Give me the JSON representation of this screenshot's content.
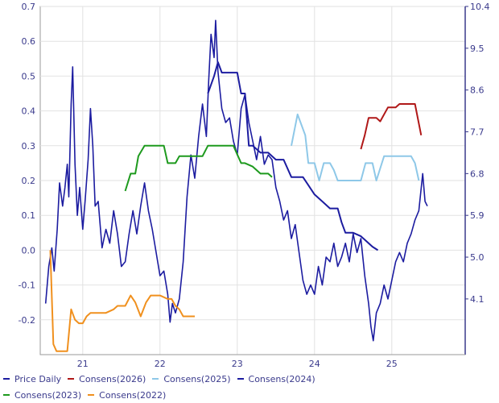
{
  "chart_data": {
    "type": "line",
    "x_ticks": [
      21,
      22,
      23,
      24,
      25
    ],
    "y_left": {
      "ticks": [
        0.7,
        0.6,
        0.5,
        0.4,
        0.3,
        0.2,
        0.1,
        0.0,
        -0.1,
        -0.2
      ],
      "labels": [
        "0.7",
        "0.6",
        "0.5",
        "0.4",
        "0.3",
        "0.2",
        "0.1",
        "0.0",
        "-0.1",
        "-0.2"
      ],
      "ylim": [
        -0.3,
        0.7
      ]
    },
    "y_right": {
      "ticks": [
        10.4,
        9.5,
        8.6,
        7.7,
        6.8,
        5.9,
        5.0,
        4.1
      ],
      "labels": [
        "10.4",
        "9.5",
        "8.6",
        "7.7",
        "6.8",
        "5.9",
        "5.0",
        "4.1"
      ],
      "ylim": [
        2.9,
        10.4
      ]
    },
    "xlim": [
      20.45,
      25.95
    ],
    "grid": true,
    "legend_position": "bottom",
    "series": [
      {
        "name": "Price Daily",
        "axis": "right",
        "color": "#1c1ca0",
        "points": [
          [
            20.52,
            4.0
          ],
          [
            20.56,
            4.8
          ],
          [
            20.6,
            5.2
          ],
          [
            20.63,
            4.7
          ],
          [
            20.67,
            5.6
          ],
          [
            20.7,
            6.6
          ],
          [
            20.74,
            6.1
          ],
          [
            20.77,
            6.5
          ],
          [
            20.8,
            7.0
          ],
          [
            20.82,
            6.3
          ],
          [
            20.85,
            8.3
          ],
          [
            20.87,
            9.1
          ],
          [
            20.9,
            7.0
          ],
          [
            20.93,
            5.9
          ],
          [
            20.96,
            6.5
          ],
          [
            21.0,
            5.6
          ],
          [
            21.03,
            6.2
          ],
          [
            21.07,
            7.1
          ],
          [
            21.1,
            8.2
          ],
          [
            21.13,
            7.4
          ],
          [
            21.16,
            6.1
          ],
          [
            21.2,
            6.2
          ],
          [
            21.25,
            5.2
          ],
          [
            21.3,
            5.6
          ],
          [
            21.35,
            5.3
          ],
          [
            21.4,
            6.0
          ],
          [
            21.45,
            5.5
          ],
          [
            21.5,
            4.8
          ],
          [
            21.55,
            4.9
          ],
          [
            21.6,
            5.5
          ],
          [
            21.65,
            6.0
          ],
          [
            21.7,
            5.5
          ],
          [
            21.75,
            6.1
          ],
          [
            21.8,
            6.6
          ],
          [
            21.85,
            6.0
          ],
          [
            21.9,
            5.6
          ],
          [
            21.95,
            5.1
          ],
          [
            22.0,
            4.6
          ],
          [
            22.05,
            4.7
          ],
          [
            22.1,
            4.2
          ],
          [
            22.13,
            3.6
          ],
          [
            22.16,
            4.0
          ],
          [
            22.2,
            3.8
          ],
          [
            22.25,
            4.1
          ],
          [
            22.3,
            4.9
          ],
          [
            22.35,
            6.3
          ],
          [
            22.4,
            7.2
          ],
          [
            22.45,
            6.7
          ],
          [
            22.5,
            7.6
          ],
          [
            22.55,
            8.3
          ],
          [
            22.6,
            7.6
          ],
          [
            22.63,
            8.8
          ],
          [
            22.66,
            9.8
          ],
          [
            22.7,
            9.3
          ],
          [
            22.72,
            10.1
          ],
          [
            22.75,
            9.0
          ],
          [
            22.8,
            8.2
          ],
          [
            22.85,
            7.9
          ],
          [
            22.9,
            8.0
          ],
          [
            22.95,
            7.5
          ],
          [
            23.0,
            7.2
          ],
          [
            23.05,
            8.2
          ],
          [
            23.1,
            8.5
          ],
          [
            23.15,
            7.9
          ],
          [
            23.2,
            7.5
          ],
          [
            23.25,
            7.1
          ],
          [
            23.3,
            7.6
          ],
          [
            23.35,
            7.0
          ],
          [
            23.4,
            7.2
          ],
          [
            23.45,
            7.1
          ],
          [
            23.5,
            6.5
          ],
          [
            23.55,
            6.2
          ],
          [
            23.6,
            5.8
          ],
          [
            23.65,
            6.0
          ],
          [
            23.7,
            5.4
          ],
          [
            23.75,
            5.7
          ],
          [
            23.8,
            5.1
          ],
          [
            23.85,
            4.5
          ],
          [
            23.9,
            4.2
          ],
          [
            23.95,
            4.4
          ],
          [
            24.0,
            4.2
          ],
          [
            24.05,
            4.8
          ],
          [
            24.1,
            4.4
          ],
          [
            24.15,
            5.0
          ],
          [
            24.2,
            4.9
          ],
          [
            24.25,
            5.3
          ],
          [
            24.3,
            4.8
          ],
          [
            24.35,
            5.0
          ],
          [
            24.4,
            5.3
          ],
          [
            24.45,
            4.9
          ],
          [
            24.5,
            5.5
          ],
          [
            24.55,
            5.1
          ],
          [
            24.6,
            5.4
          ],
          [
            24.65,
            4.6
          ],
          [
            24.7,
            4.0
          ],
          [
            24.73,
            3.5
          ],
          [
            24.76,
            3.2
          ],
          [
            24.8,
            3.8
          ],
          [
            24.85,
            4.0
          ],
          [
            24.9,
            4.4
          ],
          [
            24.95,
            4.1
          ],
          [
            25.0,
            4.5
          ],
          [
            25.05,
            4.9
          ],
          [
            25.1,
            5.1
          ],
          [
            25.15,
            4.9
          ],
          [
            25.2,
            5.3
          ],
          [
            25.25,
            5.5
          ],
          [
            25.3,
            5.8
          ],
          [
            25.35,
            6.0
          ],
          [
            25.4,
            6.8
          ],
          [
            25.43,
            6.2
          ],
          [
            25.46,
            6.1
          ]
        ]
      },
      {
        "name": "Consens(2026)",
        "axis": "left",
        "color": "#b01818",
        "points": [
          [
            24.6,
            0.29
          ],
          [
            24.65,
            0.33
          ],
          [
            24.7,
            0.38
          ],
          [
            24.8,
            0.38
          ],
          [
            24.85,
            0.37
          ],
          [
            24.95,
            0.41
          ],
          [
            25.05,
            0.41
          ],
          [
            25.1,
            0.42
          ],
          [
            25.3,
            0.42
          ],
          [
            25.38,
            0.33
          ]
        ]
      },
      {
        "name": "Consens(2025)",
        "axis": "left",
        "color": "#8ec8e8",
        "points": [
          [
            23.7,
            0.3
          ],
          [
            23.78,
            0.39
          ],
          [
            23.88,
            0.33
          ],
          [
            23.92,
            0.25
          ],
          [
            24.0,
            0.25
          ],
          [
            24.06,
            0.2
          ],
          [
            24.12,
            0.25
          ],
          [
            24.2,
            0.25
          ],
          [
            24.25,
            0.23
          ],
          [
            24.3,
            0.2
          ],
          [
            24.5,
            0.2
          ],
          [
            24.6,
            0.2
          ],
          [
            24.66,
            0.25
          ],
          [
            24.75,
            0.25
          ],
          [
            24.8,
            0.2
          ],
          [
            24.9,
            0.27
          ],
          [
            25.0,
            0.27
          ],
          [
            25.25,
            0.27
          ],
          [
            25.3,
            0.25
          ],
          [
            25.35,
            0.2
          ]
        ]
      },
      {
        "name": "Consens(2024)",
        "axis": "left",
        "color": "#1c1ca0",
        "points": [
          [
            22.62,
            0.45
          ],
          [
            22.7,
            0.5
          ],
          [
            22.75,
            0.54
          ],
          [
            22.8,
            0.51
          ],
          [
            22.85,
            0.51
          ],
          [
            23.0,
            0.51
          ],
          [
            23.05,
            0.45
          ],
          [
            23.1,
            0.45
          ],
          [
            23.15,
            0.3
          ],
          [
            23.2,
            0.3
          ],
          [
            23.3,
            0.28
          ],
          [
            23.4,
            0.28
          ],
          [
            23.5,
            0.26
          ],
          [
            23.6,
            0.26
          ],
          [
            23.7,
            0.21
          ],
          [
            23.85,
            0.21
          ],
          [
            24.0,
            0.16
          ],
          [
            24.1,
            0.14
          ],
          [
            24.2,
            0.12
          ],
          [
            24.3,
            0.12
          ],
          [
            24.35,
            0.08
          ],
          [
            24.4,
            0.05
          ],
          [
            24.5,
            0.05
          ],
          [
            24.6,
            0.04
          ],
          [
            24.7,
            0.02
          ],
          [
            24.75,
            0.01
          ],
          [
            24.82,
            0.0
          ]
        ]
      },
      {
        "name": "Consens(2023)",
        "axis": "left",
        "color": "#1e9a1e",
        "points": [
          [
            21.55,
            0.17
          ],
          [
            21.62,
            0.22
          ],
          [
            21.68,
            0.22
          ],
          [
            21.72,
            0.27
          ],
          [
            21.8,
            0.3
          ],
          [
            21.88,
            0.3
          ],
          [
            21.95,
            0.3
          ],
          [
            22.05,
            0.3
          ],
          [
            22.1,
            0.25
          ],
          [
            22.2,
            0.25
          ],
          [
            22.25,
            0.27
          ],
          [
            22.35,
            0.27
          ],
          [
            22.45,
            0.27
          ],
          [
            22.55,
            0.27
          ],
          [
            22.62,
            0.3
          ],
          [
            22.72,
            0.3
          ],
          [
            22.82,
            0.3
          ],
          [
            22.95,
            0.3
          ],
          [
            23.05,
            0.25
          ],
          [
            23.1,
            0.25
          ],
          [
            23.2,
            0.24
          ],
          [
            23.3,
            0.22
          ],
          [
            23.4,
            0.22
          ],
          [
            23.45,
            0.21
          ]
        ]
      },
      {
        "name": "Consens(2022)",
        "axis": "left",
        "color": "#f0901e",
        "points": [
          [
            20.58,
            0.0
          ],
          [
            20.62,
            -0.27
          ],
          [
            20.66,
            -0.29
          ],
          [
            20.72,
            -0.29
          ],
          [
            20.8,
            -0.29
          ],
          [
            20.85,
            -0.17
          ],
          [
            20.9,
            -0.2
          ],
          [
            20.95,
            -0.21
          ],
          [
            21.0,
            -0.21
          ],
          [
            21.05,
            -0.19
          ],
          [
            21.1,
            -0.18
          ],
          [
            21.2,
            -0.18
          ],
          [
            21.3,
            -0.18
          ],
          [
            21.4,
            -0.17
          ],
          [
            21.45,
            -0.16
          ],
          [
            21.55,
            -0.16
          ],
          [
            21.62,
            -0.13
          ],
          [
            21.68,
            -0.15
          ],
          [
            21.75,
            -0.19
          ],
          [
            21.82,
            -0.15
          ],
          [
            21.88,
            -0.13
          ],
          [
            21.95,
            -0.13
          ],
          [
            22.0,
            -0.13
          ],
          [
            22.1,
            -0.14
          ],
          [
            22.15,
            -0.14
          ],
          [
            22.2,
            -0.16
          ],
          [
            22.25,
            -0.17
          ],
          [
            22.3,
            -0.19
          ],
          [
            22.35,
            -0.19
          ],
          [
            22.45,
            -0.19
          ]
        ]
      }
    ]
  },
  "legend": {
    "rows": [
      [
        "Price Daily",
        "Consens(2026)",
        "Consens(2025)",
        "Consens(2024)"
      ],
      [
        "Consens(2023)",
        "Consens(2022)"
      ]
    ]
  }
}
